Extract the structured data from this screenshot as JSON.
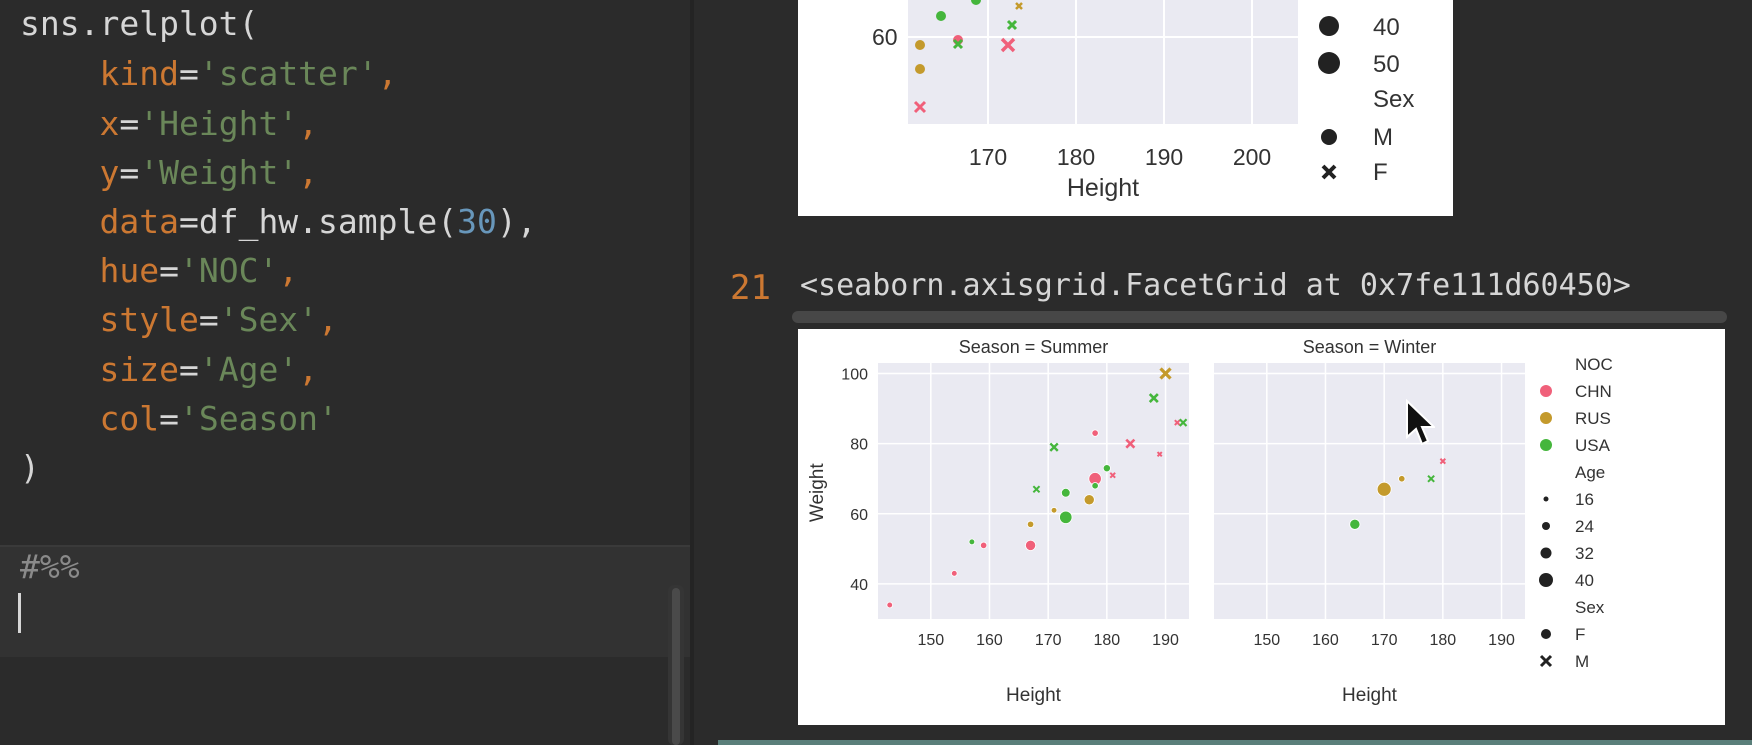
{
  "editor": {
    "code_lines": [
      [
        {
          "t": "sns.relplot(",
          "c": "plain"
        }
      ],
      [
        {
          "t": "    ",
          "c": "plain"
        },
        {
          "t": "kind",
          "c": "kw"
        },
        {
          "t": "=",
          "c": "plain"
        },
        {
          "t": "'scatter'",
          "c": "str"
        },
        {
          "t": ",",
          "c": "kw"
        }
      ],
      [
        {
          "t": "    ",
          "c": "plain"
        },
        {
          "t": "x",
          "c": "kw"
        },
        {
          "t": "=",
          "c": "plain"
        },
        {
          "t": "'Height'",
          "c": "str"
        },
        {
          "t": ",",
          "c": "kw"
        }
      ],
      [
        {
          "t": "    ",
          "c": "plain"
        },
        {
          "t": "y",
          "c": "kw"
        },
        {
          "t": "=",
          "c": "plain"
        },
        {
          "t": "'Weight'",
          "c": "str"
        },
        {
          "t": ",",
          "c": "kw"
        }
      ],
      [
        {
          "t": "    ",
          "c": "plain"
        },
        {
          "t": "data",
          "c": "kw"
        },
        {
          "t": "=df_hw.sample(",
          "c": "plain"
        },
        {
          "t": "30",
          "c": "num"
        },
        {
          "t": "),",
          "c": "plain"
        }
      ],
      [
        {
          "t": "    ",
          "c": "plain"
        },
        {
          "t": "hue",
          "c": "kw"
        },
        {
          "t": "=",
          "c": "plain"
        },
        {
          "t": "'NOC'",
          "c": "str"
        },
        {
          "t": ",",
          "c": "kw"
        }
      ],
      [
        {
          "t": "    ",
          "c": "plain"
        },
        {
          "t": "style",
          "c": "kw"
        },
        {
          "t": "=",
          "c": "plain"
        },
        {
          "t": "'Sex'",
          "c": "str"
        },
        {
          "t": ",",
          "c": "kw"
        }
      ],
      [
        {
          "t": "    ",
          "c": "plain"
        },
        {
          "t": "size",
          "c": "kw"
        },
        {
          "t": "=",
          "c": "plain"
        },
        {
          "t": "'Age'",
          "c": "str"
        },
        {
          "t": ",",
          "c": "kw"
        }
      ],
      [
        {
          "t": "    ",
          "c": "plain"
        },
        {
          "t": "col",
          "c": "kw"
        },
        {
          "t": "=",
          "c": "plain"
        },
        {
          "t": "'Season'",
          "c": "str"
        }
      ],
      [
        {
          "t": ")",
          "c": "plain"
        }
      ]
    ],
    "cell_marker": "#%%"
  },
  "output": {
    "prompt_number": "21",
    "repr_text": "<seaborn.axisgrid.FacetGrid at 0x7fe111d60450>"
  },
  "top_figure": {
    "y_tick": "60",
    "x_ticks": [
      "170",
      "180",
      "190",
      "200"
    ],
    "xlabel": "Height",
    "legend_items": [
      "40",
      "50",
      "Sex",
      "M",
      "F"
    ]
  },
  "colors": {
    "CHN": "#f0607a",
    "RUS": "#c49a2c",
    "USA": "#45b63c",
    "plot_bg": "#eaeaf2",
    "code_keyword": "#cc7832",
    "code_string": "#6a8759",
    "code_number": "#6897bb"
  },
  "chart_data": {
    "type": "scatter",
    "xlabel": "Height",
    "ylabel": "Weight",
    "ylim": [
      30,
      103
    ],
    "y_ticks": [
      40,
      60,
      80,
      100
    ],
    "legend_placement": "right",
    "legend": {
      "hue_title": "NOC",
      "hue": [
        "CHN",
        "RUS",
        "USA"
      ],
      "size_title": "Age",
      "sizes": [
        16,
        24,
        32,
        40
      ],
      "style_title": "Sex",
      "styles": [
        {
          "label": "F",
          "marker": "circle"
        },
        {
          "label": "M",
          "marker": "x"
        }
      ]
    },
    "panels": [
      {
        "title": "Season = Summer",
        "xlim": [
          141,
          194
        ],
        "x_ticks": [
          150,
          160,
          170,
          180,
          190
        ],
        "points": [
          {
            "x": 143,
            "y": 34,
            "noc": "CHN",
            "sex": "F",
            "age": 18
          },
          {
            "x": 154,
            "y": 43,
            "noc": "CHN",
            "sex": "F",
            "age": 18
          },
          {
            "x": 157,
            "y": 52,
            "noc": "USA",
            "sex": "F",
            "age": 18
          },
          {
            "x": 159,
            "y": 51,
            "noc": "CHN",
            "sex": "F",
            "age": 20
          },
          {
            "x": 167,
            "y": 51,
            "noc": "CHN",
            "sex": "F",
            "age": 30
          },
          {
            "x": 167,
            "y": 57,
            "noc": "RUS",
            "sex": "F",
            "age": 20
          },
          {
            "x": 168,
            "y": 67,
            "noc": "USA",
            "sex": "M",
            "age": 22
          },
          {
            "x": 171,
            "y": 79,
            "noc": "USA",
            "sex": "M",
            "age": 26
          },
          {
            "x": 171,
            "y": 61,
            "noc": "RUS",
            "sex": "F",
            "age": 18
          },
          {
            "x": 173,
            "y": 59,
            "noc": "USA",
            "sex": "F",
            "age": 36
          },
          {
            "x": 173,
            "y": 66,
            "noc": "USA",
            "sex": "F",
            "age": 26
          },
          {
            "x": 177,
            "y": 64,
            "noc": "RUS",
            "sex": "F",
            "age": 30
          },
          {
            "x": 178,
            "y": 70,
            "noc": "CHN",
            "sex": "F",
            "age": 36
          },
          {
            "x": 178,
            "y": 68,
            "noc": "USA",
            "sex": "F",
            "age": 20
          },
          {
            "x": 178,
            "y": 83,
            "noc": "CHN",
            "sex": "F",
            "age": 20
          },
          {
            "x": 180,
            "y": 73,
            "noc": "USA",
            "sex": "F",
            "age": 22
          },
          {
            "x": 181,
            "y": 71,
            "noc": "CHN",
            "sex": "M",
            "age": 18
          },
          {
            "x": 184,
            "y": 80,
            "noc": "CHN",
            "sex": "M",
            "age": 28
          },
          {
            "x": 188,
            "y": 93,
            "noc": "USA",
            "sex": "M",
            "age": 28
          },
          {
            "x": 189,
            "y": 77,
            "noc": "CHN",
            "sex": "M",
            "age": 16
          },
          {
            "x": 190,
            "y": 100,
            "noc": "RUS",
            "sex": "M",
            "age": 34
          },
          {
            "x": 192,
            "y": 86,
            "noc": "CHN",
            "sex": "M",
            "age": 18
          },
          {
            "x": 193,
            "y": 86,
            "noc": "USA",
            "sex": "M",
            "age": 24
          }
        ]
      },
      {
        "title": "Season = Winter",
        "xlim": [
          141,
          194
        ],
        "x_ticks": [
          150,
          160,
          170,
          180,
          190
        ],
        "points": [
          {
            "x": 165,
            "y": 57,
            "noc": "USA",
            "sex": "F",
            "age": 30
          },
          {
            "x": 170,
            "y": 67,
            "noc": "RUS",
            "sex": "F",
            "age": 40
          },
          {
            "x": 173,
            "y": 70,
            "noc": "RUS",
            "sex": "F",
            "age": 20
          },
          {
            "x": 178,
            "y": 70,
            "noc": "USA",
            "sex": "M",
            "age": 22
          },
          {
            "x": 180,
            "y": 75,
            "noc": "CHN",
            "sex": "M",
            "age": 18
          }
        ]
      }
    ]
  }
}
